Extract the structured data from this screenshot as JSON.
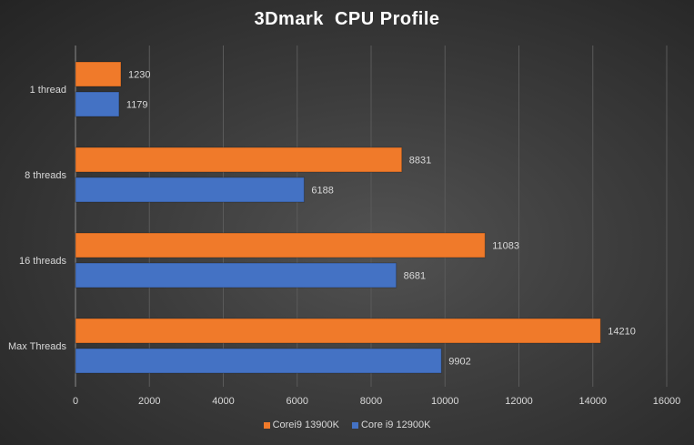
{
  "chart_data": {
    "type": "bar",
    "orientation": "horizontal",
    "title": "3Dmark  CPU Profile",
    "categories": [
      "1 thread",
      "8 threads",
      "16 threads",
      "Max Threads"
    ],
    "series": [
      {
        "name": "Corei9 13900K",
        "color": "#f07a2a",
        "values": [
          1230,
          8831,
          11083,
          14210
        ]
      },
      {
        "name": "Core i9 12900K",
        "color": "#4472c4",
        "values": [
          1179,
          6188,
          8681,
          9902
        ]
      }
    ],
    "xlim": [
      0,
      16000
    ],
    "xticks": [
      0,
      2000,
      4000,
      6000,
      8000,
      10000,
      12000,
      14000,
      16000
    ],
    "grid": true,
    "legend": "bottom",
    "data_labels": true
  }
}
